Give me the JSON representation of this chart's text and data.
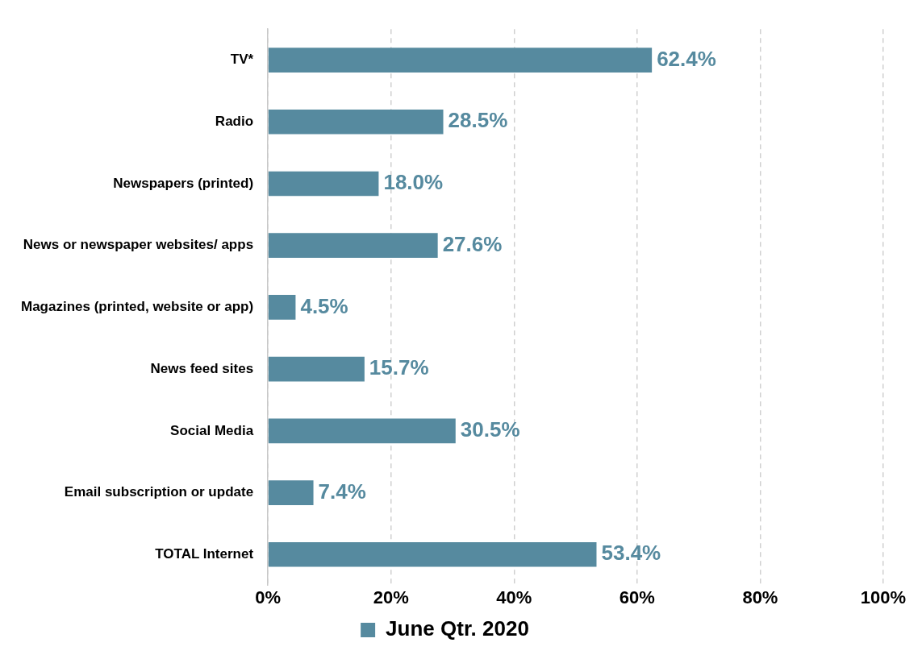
{
  "chart_data": {
    "type": "bar",
    "orientation": "horizontal",
    "categories": [
      "TV*",
      "Radio",
      "Newspapers (printed)",
      "News or newspaper websites/ apps",
      "Magazines (printed, website or app)",
      "News feed sites",
      "Social Media",
      "Email subscription or update",
      "TOTAL Internet"
    ],
    "series": [
      {
        "name": "June Qtr. 2020",
        "color": "#568a9f",
        "values": [
          62.4,
          28.5,
          18.0,
          27.6,
          4.5,
          15.7,
          30.5,
          7.4,
          53.4
        ],
        "value_labels": [
          "62.4%",
          "28.5%",
          "18.0%",
          "27.6%",
          "4.5%",
          "15.7%",
          "30.5%",
          "7.4%",
          "53.4%"
        ]
      }
    ],
    "xlim": [
      0,
      100
    ],
    "xticks": [
      {
        "value": 0,
        "label": "0%"
      },
      {
        "value": 20,
        "label": "20%"
      },
      {
        "value": 40,
        "label": "40%"
      },
      {
        "value": 60,
        "label": "60%"
      },
      {
        "value": 80,
        "label": "80%"
      },
      {
        "value": 100,
        "label": "100%"
      }
    ],
    "grid": "x",
    "legend": "bottom"
  }
}
